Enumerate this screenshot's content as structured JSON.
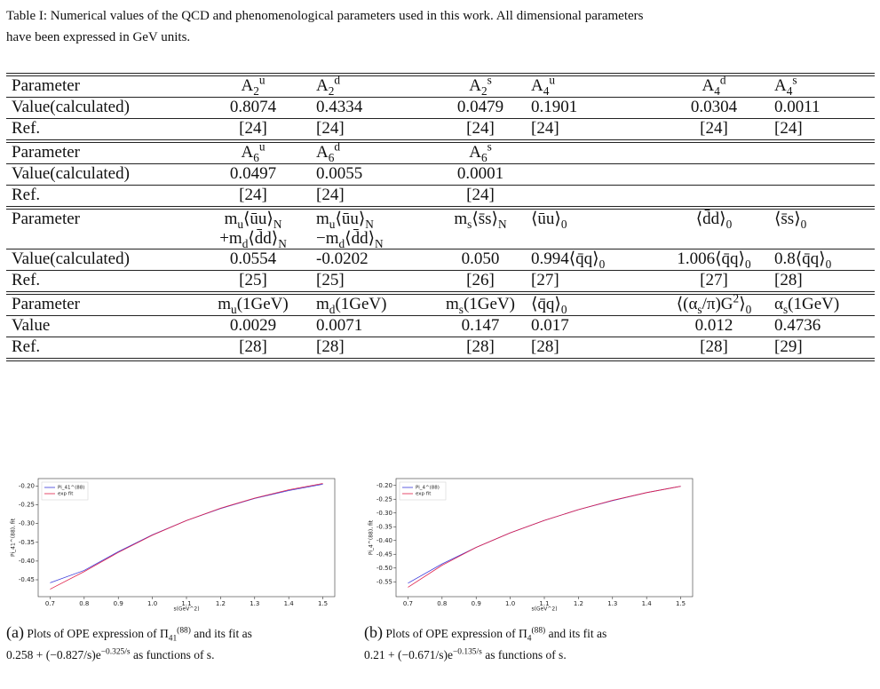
{
  "caption": "Table I: Numerical values of the QCD and phenomenological parameters used in this work. All dimensional parameters have been expressed in GeV units.",
  "table": {
    "blocks": [
      {
        "rows": [
          [
            "Parameter",
            "A_{2}^{u}",
            "A_{2}^{d}",
            "A_{2}^{s}",
            "A_{4}^{u}",
            "A_{4}^{d}",
            "A_{4}^{s}"
          ],
          [
            "Value(calculated)",
            "0.8074",
            "0.4334",
            "0.0479",
            "0.1901",
            "0.0304",
            "0.0011"
          ],
          [
            "Ref.",
            "[24]",
            "[24]",
            "[24]",
            "[24]",
            "[24]",
            "[24]"
          ]
        ]
      },
      {
        "rows": [
          [
            "Parameter",
            "A_{6}^{u}",
            "A_{6}^{d}",
            "A_{6}^{s}"
          ],
          [
            "Value(calculated)",
            "0.0497",
            "0.0055",
            "0.0001"
          ],
          [
            "Ref.",
            "[24]",
            "[24]",
            "[24]"
          ]
        ]
      },
      {
        "rows": [
          [
            "Parameter",
            "m_{u}⟨ūu⟩_{N}\n+m_{d}⟨d̄d⟩_{N}",
            "m_{u}⟨ūu⟩_{N}\n−m_{d}⟨d̄d⟩_{N}",
            "m_{s}⟨s̄s⟩_{N}",
            "⟨ūu⟩_{0}",
            "⟨d̄d⟩_{0}",
            "⟨s̄s⟩_{0}"
          ],
          [
            "Value(calculated)",
            "0.0554",
            "-0.0202",
            "0.050",
            "0.994⟨q̄q⟩_{0}",
            "1.006⟨q̄q⟩_{0}",
            "0.8⟨q̄q⟩_{0}"
          ],
          [
            "Ref.",
            "[25]",
            "[25]",
            "[26]",
            "[27]",
            "[27]",
            "[28]"
          ]
        ]
      },
      {
        "rows": [
          [
            "Parameter",
            "m_{u}(1GeV)",
            "m_{d}(1GeV)",
            "m_{s}(1GeV)",
            "⟨q̄q⟩_{0}",
            "⟨(α_{s}/π)G^{2}⟩_{0}",
            "α_{s}(1GeV)"
          ],
          [
            "Value",
            "0.0029",
            "0.0071",
            "0.147",
            "0.017",
            "0.012",
            "0.4736"
          ],
          [
            "Ref.",
            "[28]",
            "[28]",
            "[28]",
            "[28]",
            "[28]",
            "[29]"
          ]
        ]
      }
    ]
  },
  "chart_data": [
    {
      "type": "line",
      "caption": "(a) Plots of OPE expression of Π_{41}^{(88)} and its fit as\n0.258 + (−0.827/s)e^{−0.325/s} as functions of s.",
      "xlabel": "s(GeV^2)",
      "ylabel": "Pi_41^(88), fit",
      "legend": "upper left",
      "x": [
        0.7,
        0.8,
        0.9,
        1.0,
        1.1,
        1.2,
        1.3,
        1.4,
        1.5
      ],
      "series": [
        {
          "name": "Pi_41^(88)",
          "color": "#3a3adb",
          "values": [
            -0.458,
            -0.425,
            -0.375,
            -0.33,
            -0.292,
            -0.26,
            -0.233,
            -0.212,
            -0.195
          ]
        },
        {
          "name": "exp fit",
          "color": "#e0204a",
          "values": [
            -0.475,
            -0.428,
            -0.377,
            -0.331,
            -0.292,
            -0.259,
            -0.232,
            -0.21,
            -0.193
          ]
        }
      ],
      "xlim": [
        0.665,
        1.535
      ],
      "ylim": [
        -0.495,
        -0.18
      ],
      "xticks": [
        0.7,
        0.8,
        0.9,
        {
          "value": 1,
          "label": "1.0"
        },
        1.1,
        1.2,
        1.3,
        1.4,
        1.5
      ],
      "yticks": [
        {
          "value": -0.2,
          "label": "-0.20"
        },
        -0.25,
        {
          "value": -0.3,
          "label": "-0.30"
        },
        -0.35,
        {
          "value": -0.4,
          "label": "-0.40"
        },
        -0.45
      ]
    },
    {
      "type": "line",
      "caption": "(b) Plots of OPE expression of Π_{4}^{(88)} and its fit as\n0.21 + (−0.671/s)e^{−0.135/s} as functions of s.",
      "xlabel": "s(GeV^2)",
      "ylabel": "Pi_4^(88), fit",
      "legend": "upper left",
      "x": [
        0.7,
        0.8,
        0.9,
        1.0,
        1.1,
        1.2,
        1.3,
        1.4,
        1.5
      ],
      "series": [
        {
          "name": "Pi_4^(88)",
          "color": "#3a3adb",
          "values": [
            -0.555,
            -0.485,
            -0.425,
            -0.372,
            -0.327,
            -0.288,
            -0.255,
            -0.226,
            -0.203
          ]
        },
        {
          "name": "exp fit",
          "color": "#e0204a",
          "values": [
            -0.57,
            -0.49,
            -0.425,
            -0.372,
            -0.327,
            -0.288,
            -0.254,
            -0.226,
            -0.203
          ]
        }
      ],
      "xlim": [
        0.665,
        1.535
      ],
      "ylim": [
        -0.604,
        -0.175
      ],
      "xticks": [
        0.7,
        0.8,
        0.9,
        {
          "value": 1,
          "label": "1.0"
        },
        1.1,
        1.2,
        1.3,
        1.4,
        1.5
      ],
      "yticks": [
        {
          "value": -0.2,
          "label": "-0.20"
        },
        -0.25,
        {
          "value": -0.3,
          "label": "-0.30"
        },
        -0.35,
        {
          "value": -0.4,
          "label": "-0.40"
        },
        -0.45,
        {
          "value": -0.5,
          "label": "-0.50"
        },
        -0.55
      ]
    }
  ]
}
